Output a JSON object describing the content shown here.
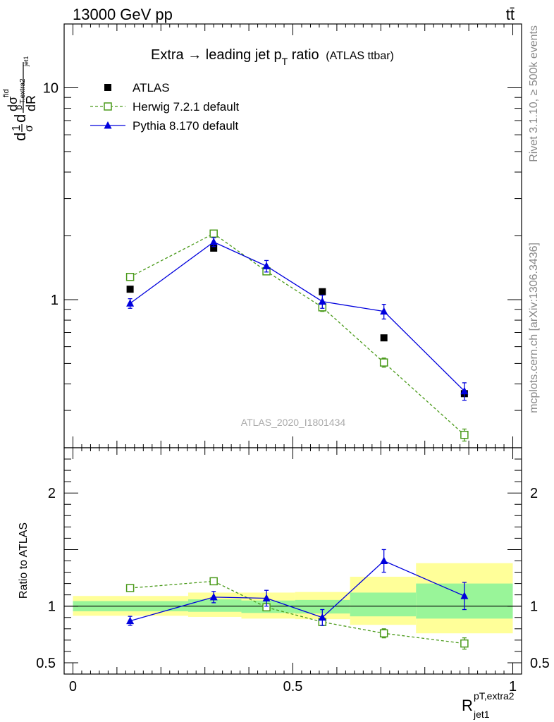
{
  "header": {
    "left": "13000 GeV pp",
    "right": "tt̄"
  },
  "side_labels": {
    "rivet": "Rivet 3.1.10, ≥ 500k events",
    "mcplots": "mcplots.cern.ch [arXiv:1306.3436]"
  },
  "plot_title": {
    "main": "Extra → leading jet p",
    "sub_T": "T",
    "ratio": " ratio",
    "paren": "(ATLAS ttbar)"
  },
  "watermark": "ATLAS_2020_I1801434",
  "y_label_main": {
    "part1": "d",
    "one": "1",
    "sigma": "σ",
    "d2": "d",
    "num": "dσ",
    "fid": "fid",
    "sub_p": "p",
    "sub_T_extra2": "T,extra2",
    "sub_jet1": "jet1",
    "den": "dR"
  },
  "y_label_ratio": "Ratio to ATLAS",
  "x_label": {
    "R": "R",
    "sup": "pT,extra2",
    "sub": "jet1"
  },
  "colors": {
    "atlas": "#000000",
    "herwig": "#4a9a1a",
    "pythia": "#0000dd",
    "band_inner": "#99f599",
    "band_outer": "#ffff99"
  },
  "chart_data": [
    {
      "type": "scatter",
      "panel": "main",
      "yscale": "log",
      "xlim": [
        -0.02,
        1.02
      ],
      "ylim": [
        0.2,
        20
      ],
      "y_ticks_labeled": [
        {
          "value": 1,
          "label": "1"
        },
        {
          "value": 10,
          "label": "10"
        }
      ],
      "legend": [
        "ATLAS",
        "Herwig 7.2.1 default",
        "Pythia 8.170 default"
      ],
      "legend_position": "top-left",
      "x": [
        0.13,
        0.32,
        0.44,
        0.567,
        0.707,
        0.89
      ],
      "series": [
        {
          "name": "ATLAS",
          "key": "atlas",
          "marker": "filled-square",
          "values": [
            1.12,
            1.75,
            1.37,
            1.09,
            0.66,
            0.36
          ]
        },
        {
          "name": "Herwig 7.2.1 default",
          "key": "herwig",
          "marker": "open-square",
          "line": "dashed",
          "values": [
            1.28,
            2.05,
            1.36,
            0.92,
            0.505,
            0.23
          ],
          "err": [
            0.04,
            0.06,
            0.05,
            0.04,
            0.025,
            0.015
          ]
        },
        {
          "name": "Pythia 8.170 default",
          "key": "pythia",
          "marker": "filled-triangle",
          "line": "solid",
          "values": [
            0.96,
            1.87,
            1.44,
            0.98,
            0.88,
            0.37
          ],
          "err": [
            0.05,
            0.09,
            0.09,
            0.07,
            0.07,
            0.035
          ]
        }
      ]
    },
    {
      "type": "line",
      "panel": "ratio",
      "ylabel": "Ratio to ATLAS",
      "xlim": [
        -0.02,
        1.02
      ],
      "ylim": [
        0.4,
        2.4
      ],
      "y_ticks_labeled": [
        {
          "value": 0.5,
          "label": "0.5"
        },
        {
          "value": 1,
          "label": "1"
        },
        {
          "value": 2,
          "label": "2"
        }
      ],
      "x_ticks_labeled": [
        {
          "value": 0,
          "label": "0"
        },
        {
          "value": 0.5,
          "label": "0.5"
        },
        {
          "value": 1,
          "label": "1"
        }
      ],
      "bands": [
        {
          "x0": 0.0,
          "x1": 0.262,
          "inner": [
            0.955,
            1.045
          ],
          "outer": [
            0.915,
            1.09
          ]
        },
        {
          "x0": 0.262,
          "x1": 0.383,
          "inner": [
            0.95,
            1.06
          ],
          "outer": [
            0.905,
            1.12
          ]
        },
        {
          "x0": 0.383,
          "x1": 0.505,
          "inner": [
            0.94,
            1.05
          ],
          "outer": [
            0.89,
            1.12
          ]
        },
        {
          "x0": 0.505,
          "x1": 0.63,
          "inner": [
            0.935,
            1.055
          ],
          "outer": [
            0.885,
            1.125
          ]
        },
        {
          "x0": 0.63,
          "x1": 0.78,
          "inner": [
            0.91,
            1.12
          ],
          "outer": [
            0.835,
            1.26
          ]
        },
        {
          "x0": 0.78,
          "x1": 1.0,
          "inner": [
            0.89,
            1.2
          ],
          "outer": [
            0.76,
            1.38
          ]
        }
      ],
      "x": [
        0.13,
        0.32,
        0.44,
        0.567,
        0.707,
        0.89
      ],
      "series": [
        {
          "name": "Herwig 7.2.1 default",
          "key": "herwig",
          "marker": "open-square",
          "line": "dashed",
          "values": [
            1.16,
            1.22,
            0.99,
            0.86,
            0.76,
            0.67
          ],
          "err": [
            0.02,
            0.03,
            0.03,
            0.03,
            0.04,
            0.05
          ]
        },
        {
          "name": "Pythia 8.170 default",
          "key": "pythia",
          "marker": "filled-triangle",
          "line": "solid",
          "values": [
            0.87,
            1.08,
            1.07,
            0.9,
            1.4,
            1.09
          ],
          "err": [
            0.04,
            0.05,
            0.07,
            0.07,
            0.1,
            0.12
          ]
        }
      ]
    }
  ]
}
